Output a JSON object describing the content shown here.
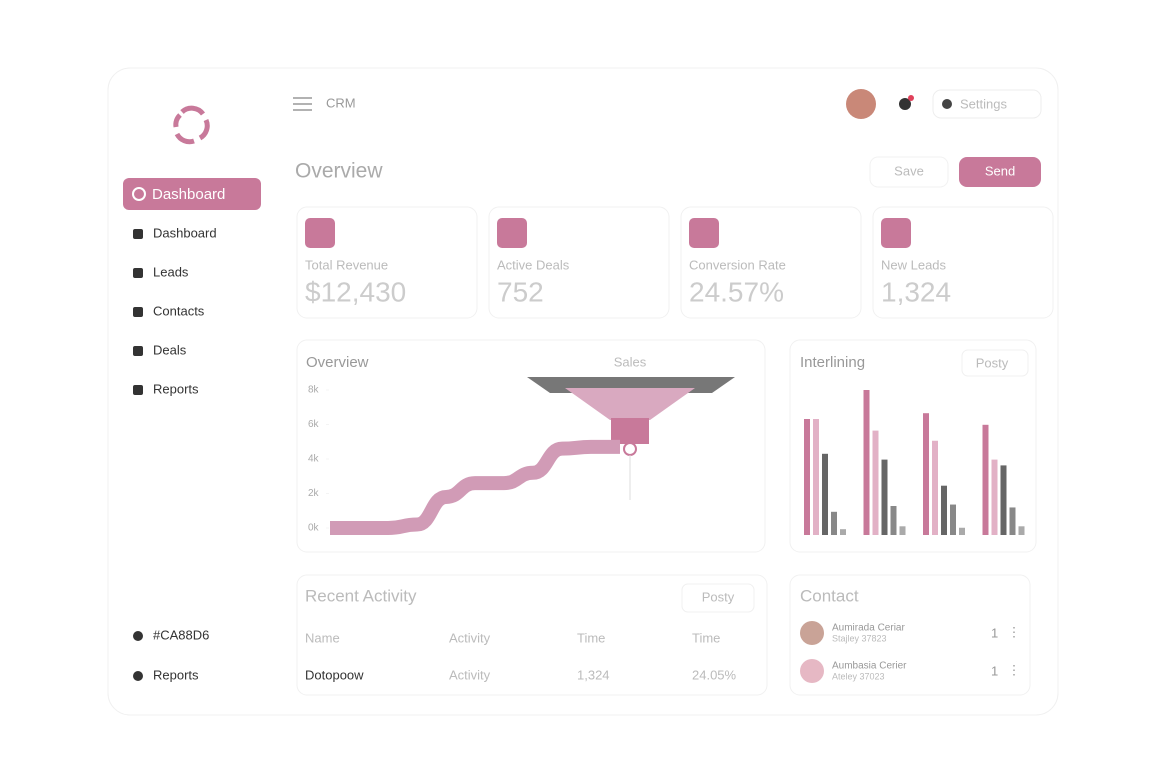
{
  "sidebar": {
    "active": "Dashboard",
    "nav": [
      "Dashboard",
      "Leads",
      "Contacts",
      "Deals",
      "Reports"
    ],
    "footer": [
      "#CA88D6",
      "Reports"
    ]
  },
  "header": {
    "app": "CRM",
    "settings": "Settings"
  },
  "overview": {
    "title": "Overview",
    "buttons": [
      "Save",
      "Send"
    ]
  },
  "stats": [
    {
      "label": "Total Revenue",
      "value": "$12,430"
    },
    {
      "label": "Active Deals",
      "value": "752"
    },
    {
      "label": "Conversion Rate",
      "value": "24.57%"
    },
    {
      "label": "New Leads",
      "value": "1,324"
    }
  ],
  "sales_chart": {
    "type": "line",
    "title": "Overview",
    "subtitle": "Sales",
    "color": "#d19bb6",
    "values": [
      0,
      0,
      0,
      0.2,
      1.8,
      2.6,
      2.6,
      3.2,
      4.6,
      4.7,
      4.7
    ],
    "ylim": [
      0,
      8
    ],
    "yticks": [
      {
        "value": 0,
        "label": "0k"
      },
      {
        "value": 2,
        "label": "2k"
      },
      {
        "value": 4,
        "label": "4k"
      },
      {
        "value": 6,
        "label": "6k"
      },
      {
        "value": 8,
        "label": "8k"
      }
    ]
  },
  "bar_chart": {
    "type": "bar",
    "title": "Interlining",
    "filter": "Posty",
    "ylim": [
      0,
      100
    ],
    "series": [
      {
        "color": "#c8799a",
        "values": [
          80,
          100,
          84,
          76
        ]
      },
      {
        "color": "#e2b1c6",
        "values": [
          80,
          72,
          65,
          52
        ]
      },
      {
        "color": "#666666",
        "values": [
          56,
          52,
          34,
          48
        ]
      },
      {
        "color": "#888888",
        "values": [
          16,
          20,
          21,
          19
        ]
      },
      {
        "color": "#aaaaaa",
        "values": [
          4,
          6,
          5,
          6
        ]
      }
    ]
  },
  "activity": {
    "title": "Recent Activity",
    "filter": "Posty",
    "columns": [
      "Name",
      "Activity",
      "Time",
      "Time"
    ],
    "rows": [
      [
        "Dotopoow",
        "Activity",
        "1,324",
        "24.05%"
      ]
    ]
  },
  "contact": {
    "title": "Contact",
    "people": [
      {
        "name": "Aumirada Ceriar",
        "detail": "Stajley 37823",
        "count": "1"
      },
      {
        "name": "Aumbasia Cerier",
        "detail": "Ateley 37023",
        "count": "1"
      }
    ]
  }
}
